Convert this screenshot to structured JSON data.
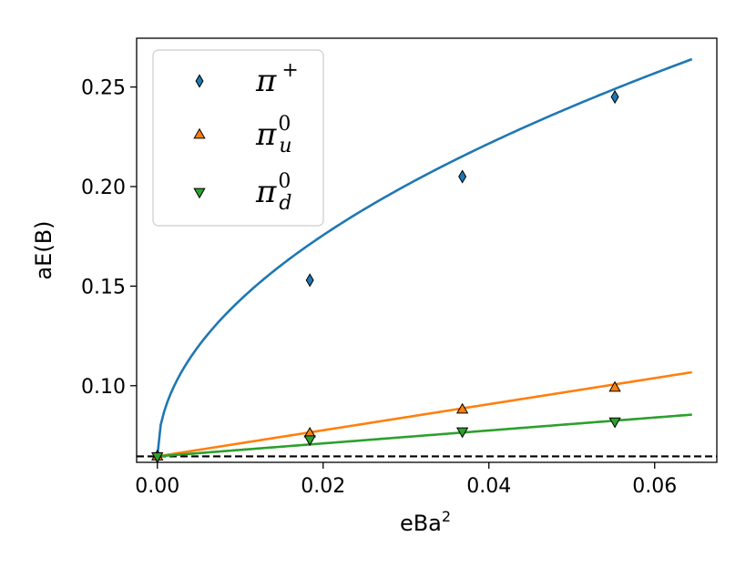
{
  "chart_data": {
    "type": "scatter",
    "xlabel": "eBa",
    "xlabel_superscript": "2",
    "ylabel": "aE(B)",
    "xlim": [
      -0.0025,
      0.0675
    ],
    "ylim": [
      0.0615,
      0.2745
    ],
    "xticks": [
      0.0,
      0.02,
      0.04,
      0.06
    ],
    "xtick_labels": [
      "0.00",
      "0.02",
      "0.04",
      "0.06"
    ],
    "yticks": [
      0.1,
      0.15,
      0.2,
      0.25
    ],
    "ytick_labels": [
      "0.10",
      "0.15",
      "0.20",
      "0.25"
    ],
    "legend_position": "top-left",
    "reference_line": {
      "y": 0.0645,
      "style": "dashed",
      "color": "#000000"
    },
    "series": [
      {
        "name": "π",
        "name_superscript": "+",
        "name_subscript": "",
        "marker": "diamond",
        "color": "#1f77b4",
        "x": [
          0.0,
          0.0184,
          0.0368,
          0.0552
        ],
        "y": [
          0.0645,
          0.153,
          0.205,
          0.245
        ],
        "fit": {
          "model": "sqrt",
          "E0": 0.0645,
          "k": 0.7855
        }
      },
      {
        "name": "π",
        "name_superscript": "0",
        "name_subscript": "u",
        "marker": "triangle-up",
        "color": "#ff7f0e",
        "x": [
          0.0,
          0.0184,
          0.0368,
          0.0552
        ],
        "y": [
          0.0645,
          0.076,
          0.088,
          0.099
        ],
        "fit": {
          "model": "linear",
          "E0": 0.0645,
          "k": 0.655
        }
      },
      {
        "name": "π",
        "name_superscript": "0",
        "name_subscript": "d",
        "marker": "triangle-down",
        "color": "#2ca02c",
        "x": [
          0.0,
          0.0184,
          0.0368,
          0.0552
        ],
        "y": [
          0.0645,
          0.073,
          0.077,
          0.082
        ],
        "fit": {
          "model": "linear",
          "E0": 0.0645,
          "k": 0.325
        }
      }
    ]
  }
}
